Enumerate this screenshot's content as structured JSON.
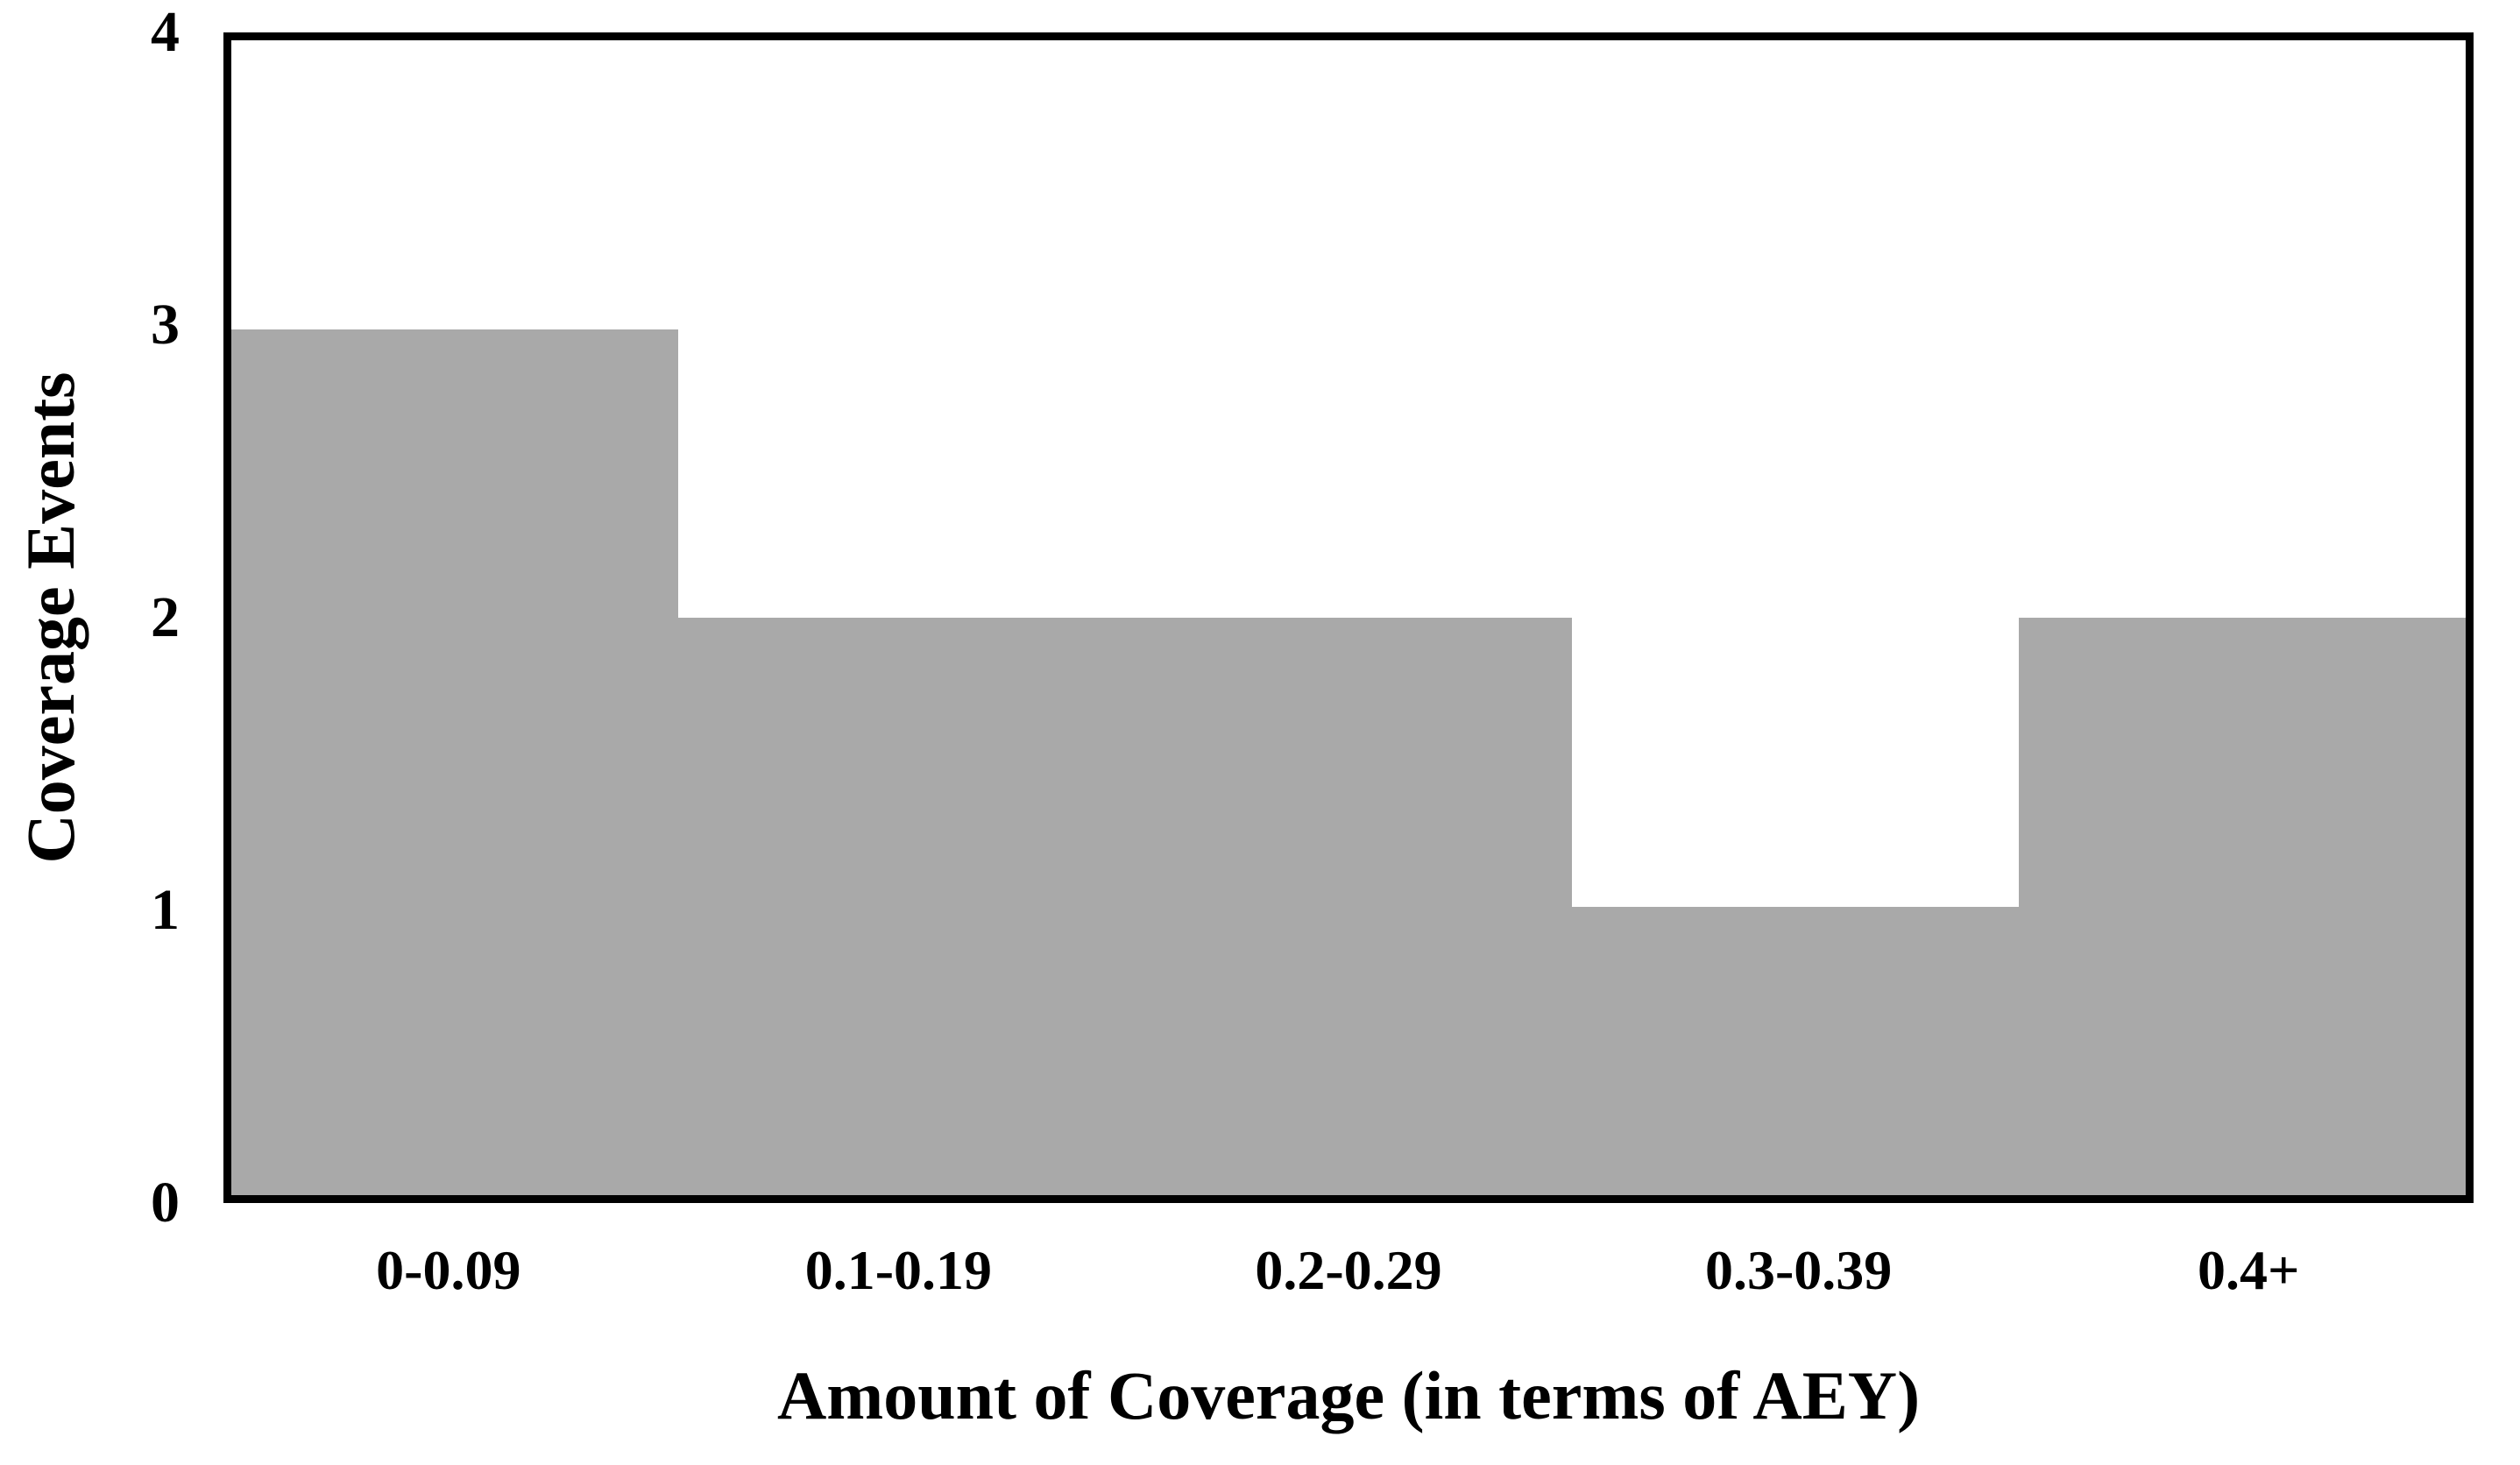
{
  "chart_data": {
    "type": "bar",
    "subtype": "histogram",
    "title": "",
    "xlabel": "Amount of Coverage (in terms of AEY)",
    "ylabel": "Coverage Events",
    "categories": [
      "0-0.09",
      "0.1-0.19",
      "0.2-0.29",
      "0.3-0.39",
      "0.4+"
    ],
    "values": [
      3,
      2,
      2,
      1,
      2
    ],
    "ylim": [
      0,
      4
    ],
    "yticks": [
      0,
      1,
      2,
      3,
      4
    ],
    "bar_gap": 0,
    "grid": false,
    "legend": false,
    "colors": {
      "bar_fill": "#a9a9a9",
      "frame": "#000000",
      "text": "#000000",
      "background": "#ffffff"
    }
  }
}
